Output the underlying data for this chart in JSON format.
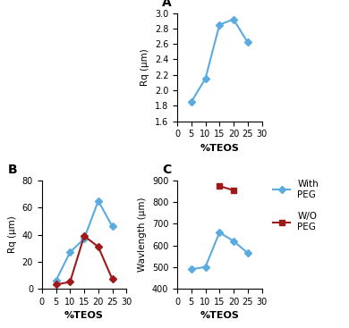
{
  "A": {
    "x": [
      5,
      10,
      15,
      20,
      25
    ],
    "y": [
      1.85,
      2.15,
      2.85,
      2.92,
      2.62
    ],
    "color": "#5aabdf",
    "marker": "D",
    "ylabel": "Rq (μm)",
    "xlabel": "%TEOS",
    "label": "A",
    "xlim": [
      0,
      30
    ],
    "ylim": [
      1.6,
      3.0
    ],
    "yticks": [
      1.6,
      1.8,
      2.0,
      2.2,
      2.4,
      2.6,
      2.8,
      3.0
    ],
    "xticks": [
      0,
      5,
      10,
      15,
      20,
      25,
      30
    ]
  },
  "B": {
    "blue_x": [
      5,
      10,
      15,
      20,
      25
    ],
    "blue_y": [
      6,
      27,
      37,
      65,
      46
    ],
    "red_x": [
      5,
      10,
      15,
      20,
      25
    ],
    "red_y": [
      3,
      5,
      39,
      31,
      7
    ],
    "blue_color": "#5aabdf",
    "red_color": "#9e1a1a",
    "marker": "D",
    "ylabel": "Rq (μm)",
    "xlabel": "%TEOS",
    "label": "B",
    "xlim": [
      0,
      30
    ],
    "ylim": [
      0,
      80
    ],
    "yticks": [
      0,
      20,
      40,
      60,
      80
    ],
    "xticks": [
      0,
      5,
      10,
      15,
      20,
      25,
      30
    ]
  },
  "C": {
    "blue_x": [
      5,
      10,
      15,
      20,
      25
    ],
    "blue_y": [
      490,
      500,
      660,
      620,
      565
    ],
    "red_x": [
      15,
      20
    ],
    "red_y": [
      875,
      855
    ],
    "blue_color": "#5aabdf",
    "red_color": "#9e1a1a",
    "marker_blue": "D",
    "marker_red": "s",
    "ylabel": "Wavlength (μm)",
    "xlabel": "%TEOS",
    "label": "C",
    "xlim": [
      0,
      30
    ],
    "ylim": [
      400,
      900
    ],
    "yticks": [
      400,
      500,
      600,
      700,
      800,
      900
    ],
    "xticks": [
      0,
      5,
      10,
      15,
      20,
      25,
      30
    ],
    "legend_with_peg": "With\nPEG",
    "legend_wo_peg": "W/O\nPEG"
  }
}
